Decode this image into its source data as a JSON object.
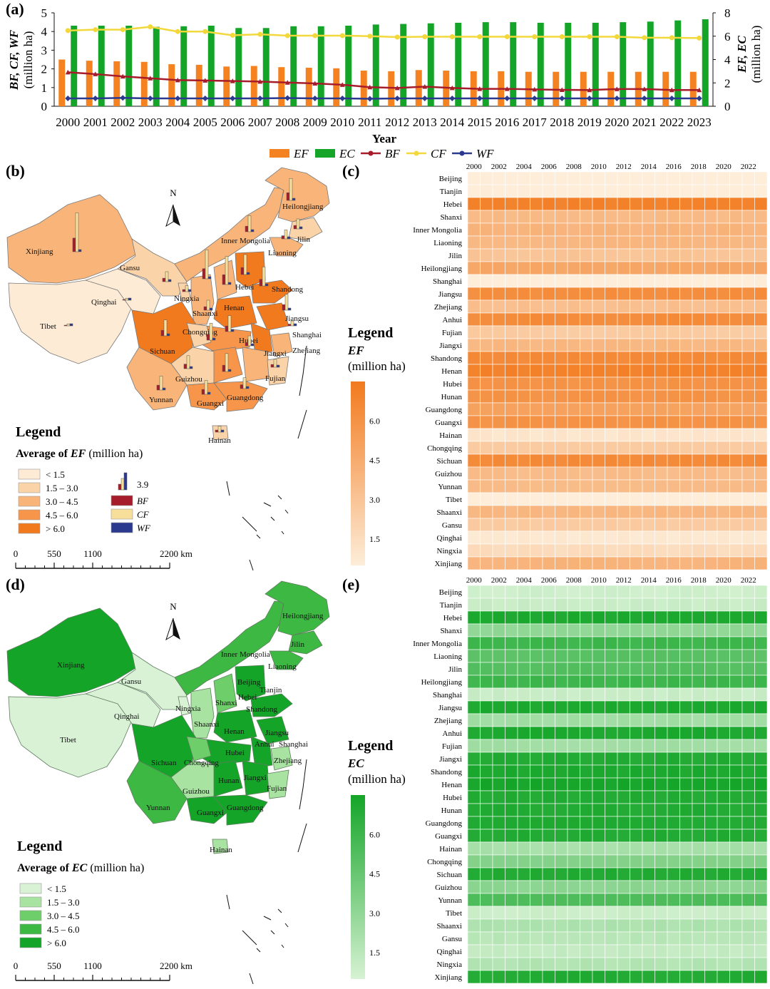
{
  "colors": {
    "ef": "#F58220",
    "ec": "#14A528",
    "bf": "#A61C2A",
    "cf": "#F2D83B",
    "wf": "#2B3A8F",
    "ef_scale": [
      "#FDEBD6",
      "#FBD3A8",
      "#F9B579",
      "#F7964A",
      "#F27A1E"
    ],
    "ec_scale": [
      "#D9F2D6",
      "#A9E3A1",
      "#6ECE69",
      "#3DB843",
      "#14A528"
    ]
  },
  "chart_data": [
    {
      "type": "bar+line",
      "panel": "(a)",
      "xlabel": "Year",
      "ylabel_left": "BF, CF, WF",
      "ylabel_left_unit": "(million ha)",
      "ylabel_right": "EF, EC",
      "ylabel_right_unit": "(million ha)",
      "ylim_left": [
        0,
        5
      ],
      "ylim_right": [
        0,
        8
      ],
      "left_ticks": [
        "0",
        "1",
        "2",
        "3",
        "4",
        "5"
      ],
      "right_ticks": [
        "0",
        "2",
        "4",
        "6",
        "8"
      ],
      "categories": [
        "2000",
        "2001",
        "2002",
        "2003",
        "2004",
        "2005",
        "2006",
        "2007",
        "2008",
        "2009",
        "2010",
        "2011",
        "2012",
        "2013",
        "2014",
        "2015",
        "2016",
        "2017",
        "2018",
        "2019",
        "2020",
        "2021",
        "2022",
        "2023"
      ],
      "series": [
        {
          "name": "EF",
          "kind": "bar",
          "axis": "right",
          "values": [
            4.0,
            3.9,
            3.85,
            3.8,
            3.6,
            3.55,
            3.4,
            3.45,
            3.35,
            3.3,
            3.25,
            3.05,
            3.0,
            3.1,
            3.05,
            3.0,
            3.0,
            2.95,
            2.95,
            2.95,
            2.95,
            2.95,
            2.95,
            2.95
          ]
        },
        {
          "name": "EC",
          "kind": "bar",
          "axis": "right",
          "values": [
            6.9,
            6.9,
            6.9,
            6.8,
            6.85,
            6.9,
            6.7,
            6.7,
            6.85,
            6.85,
            6.9,
            7.0,
            7.05,
            7.1,
            7.15,
            7.2,
            7.2,
            7.15,
            7.15,
            7.15,
            7.2,
            7.25,
            7.35,
            7.45
          ]
        },
        {
          "name": "BF",
          "kind": "line",
          "axis": "left",
          "values": [
            1.82,
            1.72,
            1.6,
            1.5,
            1.4,
            1.38,
            1.35,
            1.32,
            1.27,
            1.22,
            1.15,
            1.02,
            0.98,
            1.05,
            0.98,
            0.93,
            0.93,
            0.9,
            0.88,
            0.87,
            0.92,
            0.92,
            0.87,
            0.87
          ]
        },
        {
          "name": "CF",
          "kind": "line",
          "axis": "left",
          "values": [
            4.05,
            4.1,
            4.1,
            4.25,
            4.0,
            4.0,
            3.8,
            3.85,
            3.78,
            3.78,
            3.78,
            3.75,
            3.7,
            3.72,
            3.72,
            3.72,
            3.72,
            3.72,
            3.72,
            3.72,
            3.72,
            3.67,
            3.67,
            3.65
          ]
        },
        {
          "name": "WF",
          "kind": "line",
          "axis": "left",
          "values": [
            0.42,
            0.42,
            0.45,
            0.42,
            0.42,
            0.42,
            0.42,
            0.42,
            0.44,
            0.42,
            0.42,
            0.4,
            0.42,
            0.42,
            0.42,
            0.42,
            0.42,
            0.42,
            0.42,
            0.42,
            0.42,
            0.42,
            0.42,
            0.42
          ]
        }
      ],
      "legend": [
        "EF",
        "EC",
        "BF",
        "CF",
        "WF"
      ]
    },
    {
      "type": "heatmap",
      "panel": "(c)",
      "metric": "EF",
      "x_tick_labels": [
        "2000",
        "2002",
        "2004",
        "2006",
        "2008",
        "2010",
        "2012",
        "2014",
        "2016",
        "2018",
        "2020",
        "2022"
      ],
      "provinces": [
        "Beijing",
        "Tianjin",
        "Hebei",
        "Shanxi",
        "Inner Mongolia",
        "Liaoning",
        "Jilin",
        "Heilongjiang",
        "Shanghai",
        "Jiangsu",
        "Zhejiang",
        "Anhui",
        "Fujian",
        "Jiangxi",
        "Shandong",
        "Henan",
        "Hubei",
        "Hunan",
        "Guangdong",
        "Guangxi",
        "Hainan",
        "Chongqing",
        "Sichuan",
        "Guizhou",
        "Yunnan",
        "Tibet",
        "Shaanxi",
        "Gansu",
        "Qinghai",
        "Ningxia",
        "Xinjiang"
      ],
      "row_levels": [
        0.3,
        0.4,
        7.0,
        3.6,
        4.0,
        3.8,
        3.0,
        4.8,
        0.4,
        6.3,
        3.3,
        6.4,
        2.6,
        3.8,
        6.5,
        7.0,
        6.0,
        6.0,
        5.0,
        6.0,
        1.0,
        2.6,
        6.5,
        3.5,
        3.6,
        0.3,
        3.8,
        2.6,
        0.8,
        1.6,
        4.0
      ],
      "colorbar_ticks": [
        "1.5",
        "3.0",
        "4.5",
        "6.0"
      ],
      "colorbar_range": [
        0.5,
        7.5
      ],
      "legend_title": "Legend",
      "legend_metric": "EF",
      "legend_unit": "(million ha)"
    },
    {
      "type": "heatmap",
      "panel": "(e)",
      "metric": "EC",
      "x_tick_labels": [
        "2000",
        "2002",
        "2004",
        "2006",
        "2008",
        "2010",
        "2012",
        "2014",
        "2016",
        "2018",
        "2020",
        "2022"
      ],
      "provinces": [
        "Beijing",
        "Tianjin",
        "Hebei",
        "Shanxi",
        "Inner Mongolia",
        "Liaoning",
        "Jilin",
        "Heilongjiang",
        "Shanghai",
        "Jiangsu",
        "Zhejiang",
        "Anhui",
        "Fujian",
        "Jiangxi",
        "Shandong",
        "Henan",
        "Hubei",
        "Hunan",
        "Guangdong",
        "Guangxi",
        "Hainan",
        "Chongqing",
        "Sichuan",
        "Guizhou",
        "Yunnan",
        "Tibet",
        "Shaanxi",
        "Gansu",
        "Qinghai",
        "Ningxia",
        "Xinjiang"
      ],
      "row_levels": [
        0.8,
        1.0,
        7.2,
        3.0,
        6.0,
        5.0,
        5.2,
        6.0,
        1.0,
        7.2,
        2.4,
        7.2,
        2.4,
        7.0,
        7.2,
        7.4,
        7.0,
        7.0,
        7.0,
        7.0,
        2.2,
        3.5,
        7.0,
        3.2,
        5.5,
        0.9,
        2.0,
        1.6,
        1.2,
        1.8,
        7.0
      ],
      "colorbar_ticks": [
        "1.5",
        "3.0",
        "4.5",
        "6.0"
      ],
      "colorbar_range": [
        0.5,
        7.5
      ],
      "legend_title": "Legend",
      "legend_metric": "EC",
      "legend_unit": "(million ha)"
    }
  ],
  "panels": {
    "a": "(a)",
    "b": "(b)",
    "c": "(c)",
    "d": "(d)",
    "e": "(e)"
  },
  "map_b": {
    "north": "N",
    "legend_title": "Legend",
    "legend_subtitle_prefix": "Average of",
    "legend_subtitle_metric": "EF",
    "legend_subtitle_unit": "(million ha)",
    "classes": [
      "< 1.5",
      "1.5 – 3.0",
      "3.0 – 4.5",
      "4.5 – 6.0",
      "> 6.0"
    ],
    "bar_scale_value": "3.9",
    "bar_legend": [
      "BF",
      "CF",
      "WF"
    ],
    "scale_ticks": [
      "0",
      "550",
      "1100",
      "2200 km"
    ],
    "labels": [
      "Xinjiang",
      "Heilongjiang",
      "Jilin",
      "Inner Mongolia",
      "Liaoning",
      "Gansu",
      "Qinghai",
      "Ningxia",
      "Hebei",
      "Shandong",
      "Shaanxi",
      "Henan",
      "Jiangsu",
      "Tibet",
      "Chongqing",
      "Shanghai",
      "Hubei",
      "Sichuan",
      "Jiangxi",
      "Zhejiang",
      "Fujian",
      "Guizhou",
      "Yunnan",
      "Guangxi",
      "Guangdong",
      "Hainan"
    ]
  },
  "map_d": {
    "north": "N",
    "legend_title": "Legend",
    "legend_subtitle_prefix": "Average of",
    "legend_subtitle_metric": "EC",
    "legend_subtitle_unit": "(million ha)",
    "classes": [
      "< 1.5",
      "1.5 – 3.0",
      "3.0 – 4.5",
      "4.5 – 6.0",
      "> 6.0"
    ],
    "scale_ticks": [
      "0",
      "550",
      "1100",
      "2200 km"
    ],
    "labels": [
      "Xinjiang",
      "Heilongjiang",
      "Jilin",
      "Inner Mongolia",
      "Liaoning",
      "Gansu",
      "Beijing",
      "Tianjin",
      "Qinghai",
      "Ningxia",
      "Shanxi",
      "Hebei",
      "Shandong",
      "Shaanxi",
      "Henan",
      "Jiangsu",
      "Anhui",
      "Shanghai",
      "Tibet",
      "Hubei",
      "Sichuan",
      "Chongqing",
      "Zhejiang",
      "Jiangxi",
      "Hunan",
      "Fujian",
      "Guizhou",
      "Yunnan",
      "Guangdong",
      "Guangxi",
      "Hainan"
    ]
  }
}
